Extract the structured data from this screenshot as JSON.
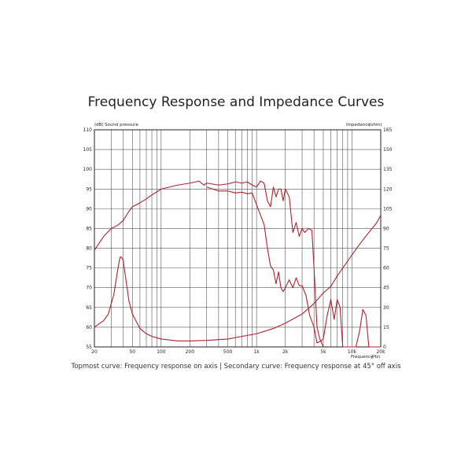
{
  "chart_data": {
    "type": "line",
    "title": "Frequency Response and Impedance Curves",
    "caption": "Topmost curve: Frequency response on axis | Secondary curve: Frequency response at 45° off axis",
    "x_axis": {
      "label": "Frequency",
      "unit": "(Hz)",
      "scale": "log",
      "range": [
        20,
        20000
      ],
      "tick_labels": [
        {
          "value": 20,
          "label": "20"
        },
        {
          "value": 50,
          "label": "50"
        },
        {
          "value": 100,
          "label": "100"
        },
        {
          "value": 200,
          "label": "200"
        },
        {
          "value": 500,
          "label": "500"
        },
        {
          "value": 1000,
          "label": "1k"
        },
        {
          "value": 2000,
          "label": "2k"
        },
        {
          "value": 5000,
          "label": "5k"
        },
        {
          "value": 10000,
          "label": "10k"
        },
        {
          "value": 20000,
          "label": "20k"
        }
      ]
    },
    "y_left": {
      "label": "Sound pressure",
      "unit": "(dB)",
      "range": [
        55,
        110
      ],
      "ticks": [
        55,
        60,
        65,
        70,
        75,
        80,
        85,
        90,
        95,
        100,
        105,
        110
      ]
    },
    "y_right": {
      "label": "Impedance",
      "unit": "(ohm)",
      "range": [
        0,
        165
      ],
      "ticks": [
        0,
        15,
        30,
        45,
        60,
        75,
        90,
        105,
        120,
        135,
        150,
        165
      ]
    },
    "grid": true,
    "colors": {
      "curve": "#b0212b",
      "grid": "#555555",
      "axis": "#222222"
    },
    "series": [
      {
        "axis": "left",
        "points": [
          [
            20,
            79.5
          ],
          [
            25,
            83
          ],
          [
            30,
            85
          ],
          [
            35,
            85.8
          ],
          [
            40,
            87
          ],
          [
            45,
            89
          ],
          [
            50,
            90.5
          ],
          [
            60,
            91.5
          ],
          [
            70,
            92.5
          ],
          [
            80,
            93.5
          ],
          [
            100,
            95
          ],
          [
            150,
            96
          ],
          [
            200,
            96.5
          ],
          [
            250,
            97
          ],
          [
            280,
            96
          ],
          [
            300,
            96.5
          ],
          [
            400,
            96
          ],
          [
            500,
            96.3
          ],
          [
            600,
            96.8
          ],
          [
            700,
            96.5
          ],
          [
            800,
            96.8
          ],
          [
            900,
            96
          ],
          [
            1000,
            95.5
          ],
          [
            1100,
            97
          ],
          [
            1200,
            96.5
          ],
          [
            1300,
            92
          ],
          [
            1400,
            90.5
          ],
          [
            1500,
            95.5
          ],
          [
            1600,
            93
          ],
          [
            1700,
            95
          ],
          [
            1800,
            95
          ],
          [
            1900,
            92
          ],
          [
            2000,
            95
          ],
          [
            2200,
            93
          ],
          [
            2400,
            84
          ],
          [
            2600,
            86.5
          ],
          [
            2800,
            83
          ],
          [
            3000,
            85
          ],
          [
            3200,
            84
          ],
          [
            3500,
            85
          ],
          [
            3800,
            84.5
          ],
          [
            4000,
            75
          ],
          [
            4300,
            60
          ],
          [
            4600,
            57
          ],
          [
            5000,
            55
          ]
        ]
      },
      {
        "axis": "left",
        "points": [
          [
            300,
            95.5
          ],
          [
            400,
            94.5
          ],
          [
            500,
            94.5
          ],
          [
            600,
            94
          ],
          [
            700,
            94.2
          ],
          [
            800,
            93.8
          ],
          [
            900,
            94
          ],
          [
            1000,
            91
          ],
          [
            1200,
            86
          ],
          [
            1300,
            80
          ],
          [
            1400,
            75.5
          ],
          [
            1500,
            74.5
          ],
          [
            1600,
            71
          ],
          [
            1700,
            74
          ],
          [
            1800,
            70
          ],
          [
            1900,
            69
          ],
          [
            2000,
            70
          ],
          [
            2200,
            72
          ],
          [
            2400,
            70
          ],
          [
            2600,
            72.5
          ],
          [
            2800,
            70.5
          ],
          [
            3000,
            70.5
          ],
          [
            3300,
            68
          ],
          [
            3600,
            63
          ],
          [
            4000,
            60
          ],
          [
            4300,
            56
          ],
          [
            4700,
            56.5
          ],
          [
            5000,
            57
          ],
          [
            5500,
            63
          ],
          [
            6000,
            67
          ],
          [
            6500,
            62
          ],
          [
            7000,
            67
          ],
          [
            7500,
            65
          ],
          [
            8000,
            55
          ],
          [
            9000,
            55
          ],
          [
            10000,
            55
          ],
          [
            11000,
            55
          ],
          [
            12000,
            59
          ],
          [
            13000,
            64.5
          ],
          [
            14000,
            63
          ],
          [
            15000,
            55
          ],
          [
            20000,
            55
          ]
        ]
      },
      {
        "axis": "right",
        "points": [
          [
            20,
            15
          ],
          [
            25,
            20
          ],
          [
            28,
            25
          ],
          [
            32,
            40
          ],
          [
            35,
            58
          ],
          [
            37,
            68
          ],
          [
            38,
            68.5
          ],
          [
            40,
            66
          ],
          [
            43,
            50
          ],
          [
            46,
            35
          ],
          [
            50,
            25
          ],
          [
            60,
            14
          ],
          [
            70,
            10
          ],
          [
            80,
            8
          ],
          [
            100,
            6
          ],
          [
            150,
            4.5
          ],
          [
            200,
            4.5
          ],
          [
            300,
            5
          ],
          [
            500,
            6
          ],
          [
            700,
            8
          ],
          [
            1000,
            10
          ],
          [
            1500,
            14
          ],
          [
            2000,
            18
          ],
          [
            3000,
            25
          ],
          [
            4000,
            33
          ],
          [
            5000,
            41
          ],
          [
            6000,
            46
          ],
          [
            7000,
            54
          ],
          [
            8000,
            60
          ],
          [
            10000,
            70
          ],
          [
            12000,
            78
          ],
          [
            15000,
            87
          ],
          [
            18000,
            94
          ],
          [
            20000,
            100
          ]
        ]
      }
    ]
  }
}
